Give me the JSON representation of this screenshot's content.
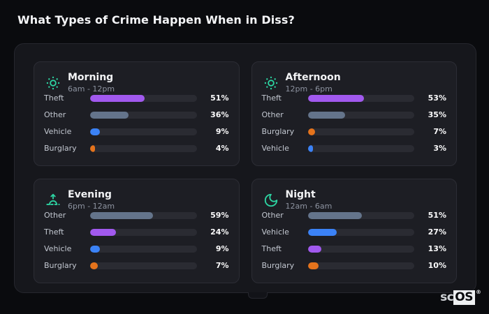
{
  "page": {
    "title": "What Types of Crime Happen When in Diss?"
  },
  "watermark": {
    "prefix": "sc",
    "suffix": "OS",
    "registered": "®"
  },
  "colors": {
    "page_bg": "#0a0b0e",
    "container_bg": "#16171c",
    "panel_bg": "#1d1e24",
    "bar_track": "#2a2b32",
    "icon_accent": "#2dd4a2",
    "theft_purple": "#a159ee",
    "other_slate": "#64748b",
    "vehicle_blue": "#3b82f6",
    "burglary_orange": "#e4731c"
  },
  "chart_data": [
    {
      "type": "bar",
      "title": "Morning",
      "subtitle": "6am - 12pm",
      "icon": "sun-icon",
      "categories": [
        "Theft",
        "Other",
        "Vehicle",
        "Burglary"
      ],
      "values": [
        51,
        36,
        9,
        4
      ],
      "value_labels": [
        "51%",
        "36%",
        "9%",
        "4%"
      ],
      "bar_colors": [
        "#a159ee",
        "#64748b",
        "#3b82f6",
        "#e4731c"
      ],
      "xlim": [
        0,
        100
      ]
    },
    {
      "type": "bar",
      "title": "Afternoon",
      "subtitle": "12pm - 6pm",
      "icon": "sun-icon",
      "categories": [
        "Theft",
        "Other",
        "Burglary",
        "Vehicle"
      ],
      "values": [
        53,
        35,
        7,
        3
      ],
      "value_labels": [
        "53%",
        "35%",
        "7%",
        "3%"
      ],
      "bar_colors": [
        "#a159ee",
        "#64748b",
        "#e4731c",
        "#3b82f6"
      ],
      "xlim": [
        0,
        100
      ]
    },
    {
      "type": "bar",
      "title": "Evening",
      "subtitle": "6pm - 12am",
      "icon": "sunrise-icon",
      "categories": [
        "Other",
        "Theft",
        "Vehicle",
        "Burglary"
      ],
      "values": [
        59,
        24,
        9,
        7
      ],
      "value_labels": [
        "59%",
        "24%",
        "9%",
        "7%"
      ],
      "bar_colors": [
        "#64748b",
        "#a159ee",
        "#3b82f6",
        "#e4731c"
      ],
      "xlim": [
        0,
        100
      ]
    },
    {
      "type": "bar",
      "title": "Night",
      "subtitle": "12am - 6am",
      "icon": "moon-icon",
      "categories": [
        "Other",
        "Vehicle",
        "Theft",
        "Burglary"
      ],
      "values": [
        51,
        27,
        13,
        10
      ],
      "value_labels": [
        "51%",
        "27%",
        "13%",
        "10%"
      ],
      "bar_colors": [
        "#64748b",
        "#3b82f6",
        "#a159ee",
        "#e4731c"
      ],
      "xlim": [
        0,
        100
      ]
    }
  ]
}
